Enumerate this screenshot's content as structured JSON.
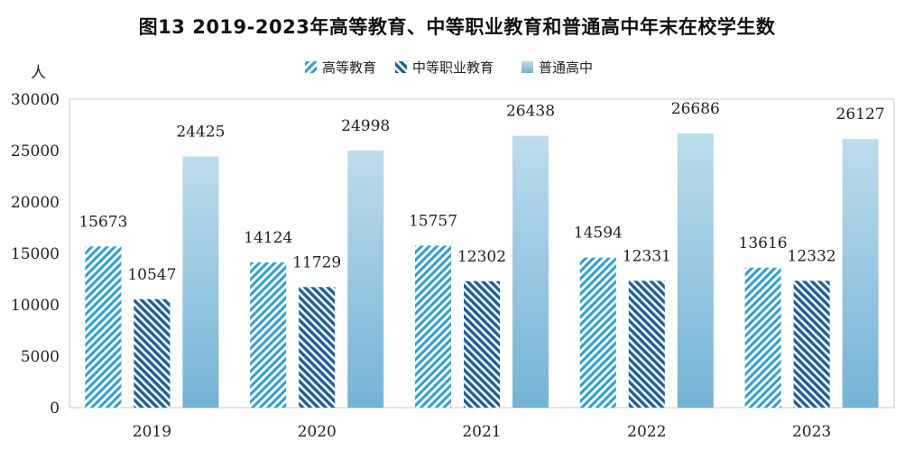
{
  "chart_data": {
    "type": "bar",
    "title": "图13 2019-2023年高等教育、中等职业教育和普通高中年末在校学生数",
    "ylabel": "人",
    "ylim": [
      0,
      30000
    ],
    "yticks": [
      0,
      5000,
      10000,
      15000,
      20000,
      25000,
      30000
    ],
    "categories": [
      "2019",
      "2020",
      "2021",
      "2022",
      "2023"
    ],
    "series": [
      {
        "name": "高等教育",
        "values": [
          15673,
          14124,
          15757,
          14594,
          13616
        ],
        "pattern": "light-hatch",
        "color": "#2aa0d8"
      },
      {
        "name": "中等职业教育",
        "values": [
          10547,
          11729,
          12302,
          12331,
          12332
        ],
        "pattern": "dark-hatch",
        "color": "#1a5f9e"
      },
      {
        "name": "普通高中",
        "values": [
          24425,
          24998,
          26438,
          26686,
          26127
        ],
        "pattern": "gradient",
        "color": "#7fb8d8"
      }
    ],
    "grid": false,
    "legend_position": "top-center"
  }
}
